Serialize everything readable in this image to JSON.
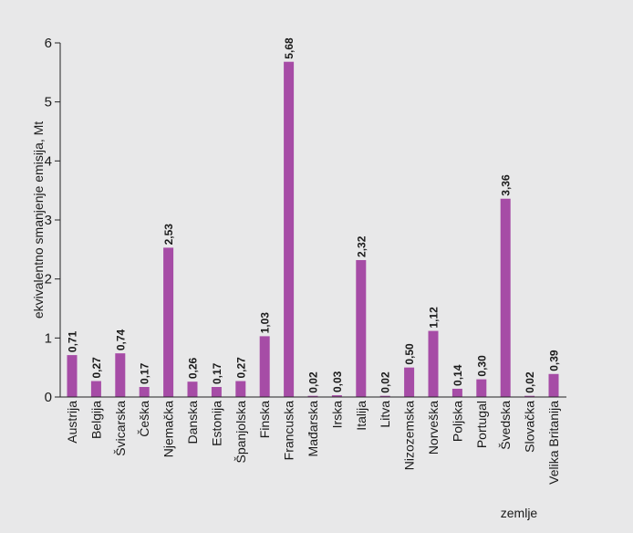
{
  "chart_data": {
    "type": "bar",
    "title": "",
    "ylabel": "ekvivalentno smanjenje emisija, Mt",
    "xlabel": "zemlje",
    "ylim": [
      0,
      6
    ],
    "yticks": [
      0,
      1,
      2,
      3,
      4,
      5,
      6
    ],
    "grid": false,
    "legend": "none",
    "bar_color": "#a64ca6",
    "background": "#e8e8e9",
    "categories": [
      "Austrija",
      "Belgija",
      "Švicarska",
      "Češka",
      "Njemačka",
      "Danska",
      "Estonija",
      "Španjolska",
      "Finska",
      "Francuska",
      "Mađarska",
      "Irska",
      "Italija",
      "Litva",
      "Nizozemska",
      "Norveška",
      "Poljska",
      "Portugal",
      "Švedska",
      "Slovačka",
      "Velika Britanija"
    ],
    "values": [
      0.71,
      0.27,
      0.74,
      0.17,
      2.53,
      0.26,
      0.17,
      0.27,
      1.03,
      5.68,
      0.02,
      0.03,
      2.32,
      0.02,
      0.5,
      1.12,
      0.14,
      0.3,
      3.36,
      0.02,
      0.39
    ],
    "value_labels": [
      "0,71",
      "0,27",
      "0,74",
      "0,17",
      "2,53",
      "0,26",
      "0,17",
      "0,27",
      "1,03",
      "5,68",
      "0,02",
      "0,03",
      "2,32",
      "0,02",
      "0,50",
      "1,12",
      "0,14",
      "0,30",
      "3,36",
      "0,02",
      "0,39"
    ]
  }
}
